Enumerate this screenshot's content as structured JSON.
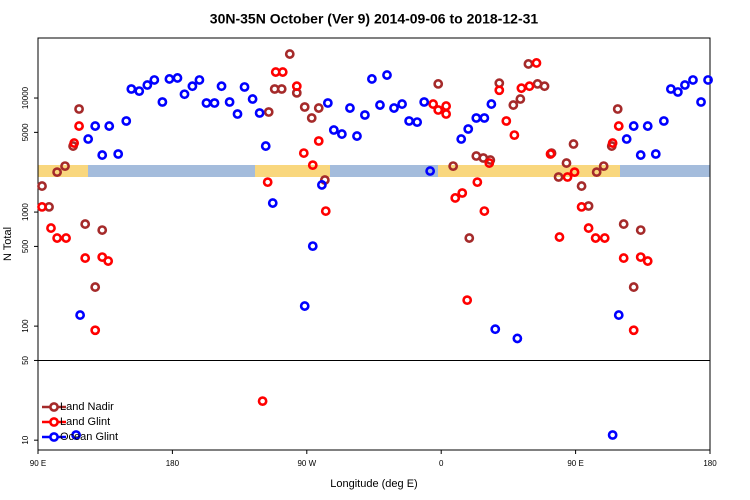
{
  "chart_data": {
    "type": "scatter",
    "title": "30N-35N October (Ver 9)   2014-09-06 to 2018-12-31",
    "xlabel": "Longitude (deg E)",
    "ylabel": "N Total",
    "xlim": [
      90,
      540
    ],
    "xticks": [
      {
        "value": 90,
        "label": "90 E"
      },
      180,
      {
        "value": 270,
        "label": "90 W"
      },
      {
        "value": 360,
        "label": "0"
      },
      {
        "value": 450,
        "label": "90 E"
      },
      {
        "value": 540,
        "label": "180"
      }
    ],
    "ylim": [
      8.2,
      33600
    ],
    "yscale": "log",
    "yticks": [
      10,
      50,
      100,
      500,
      1000,
      5000,
      10000
    ],
    "hline": 50,
    "legend": "bottom-left",
    "series": [
      {
        "name": "Land Nadir",
        "color": "#a52a2a",
        "x": [
          92.7,
          97.4,
          102.8,
          108.1,
          113.5,
          117.5,
          121.6,
          128.3,
          133.0,
          244.5,
          248.5,
          253.2,
          258.6,
          263.3,
          268.6,
          273.3,
          278.0,
          282.1,
          358.0,
          368.0,
          378.8,
          383.5,
          388.2,
          392.9,
          398.9,
          408.3,
          413.0,
          418.4,
          424.5,
          429.2,
          433.9,
          438.6,
          443.9,
          448.6,
          454.0,
          458.7,
          464.1,
          468.8,
          474.2,
          478.2,
          482.2,
          488.9,
          493.6
        ],
        "values": [
          1690,
          1110,
          2240,
          2530,
          3790,
          8010,
          785,
          220,
          695,
          7540,
          12000,
          12000,
          24300,
          11100,
          8340,
          6680,
          8170,
          1910,
          13300,
          2530,
          592,
          3100,
          2980,
          2860,
          13500,
          8680,
          9800,
          19900,
          13300,
          12700,
          3290,
          2030,
          2690,
          3950,
          1690,
          1130,
          2240,
          2530,
          3790,
          8010,
          785,
          220,
          695
        ]
      },
      {
        "name": "Land Glint",
        "color": "#ff0000",
        "x": [
          92.7,
          98.7,
          102.8,
          108.8,
          114.2,
          117.5,
          121.6,
          128.3,
          133.0,
          137.0,
          240.4,
          243.8,
          249.2,
          253.9,
          263.3,
          268.0,
          274.0,
          278.0,
          282.7,
          354.6,
          358.0,
          363.3,
          363.3,
          369.4,
          374.1,
          377.4,
          384.2,
          388.9,
          392.2,
          398.9,
          403.6,
          409.0,
          413.7,
          419.1,
          423.8,
          433.2,
          439.2,
          444.6,
          449.3,
          454.0,
          458.7,
          463.4,
          469.5,
          474.8,
          478.9,
          482.2,
          488.9,
          493.6,
          498.3
        ],
        "values": [
          1110,
          724,
          592,
          592,
          4030,
          5680,
          395,
          92,
          403,
          372,
          22,
          1830,
          16900,
          16900,
          12700,
          3290,
          2580,
          4200,
          1020,
          8850,
          7850,
          8500,
          7240,
          1330,
          1470,
          169,
          1830,
          1020,
          2690,
          11700,
          6290,
          4730,
          12200,
          12700,
          20300,
          3230,
          604,
          2030,
          2240,
          1110,
          724,
          592,
          592,
          4030,
          5680,
          395,
          92,
          403,
          372
        ]
      },
      {
        "name": "Ocean Glint",
        "color": "#0000ff",
        "x": [
          115.5,
          118.2,
          123.6,
          128.3,
          133.0,
          137.7,
          143.7,
          149.1,
          152.5,
          157.8,
          163.2,
          167.9,
          173.3,
          178.0,
          183.4,
          188.1,
          193.4,
          198.1,
          202.8,
          208.2,
          212.9,
          218.3,
          223.6,
          228.3,
          233.7,
          238.4,
          242.5,
          247.2,
          268.6,
          274.0,
          280.1,
          284.1,
          288.1,
          293.5,
          298.9,
          303.6,
          308.9,
          313.6,
          319.0,
          323.7,
          328.4,
          333.8,
          338.5,
          343.9,
          348.6,
          352.6,
          373.4,
          378.1,
          383.5,
          388.9,
          393.6,
          396.2,
          411.0,
          474.8,
          478.9,
          484.2,
          488.9,
          493.6,
          498.3,
          503.7,
          509.1,
          513.8,
          518.5,
          523.2,
          528.6,
          534.0,
          538.7
        ],
        "values": [
          11.1,
          125,
          4370,
          5680,
          3160,
          5680,
          3230,
          6290,
          12000,
          11500,
          13000,
          14400,
          9230,
          14700,
          15000,
          10800,
          12700,
          14400,
          9040,
          9040,
          12700,
          9230,
          7240,
          12500,
          9800,
          7390,
          3790,
          1200,
          150,
          503,
          1730,
          9040,
          5240,
          4830,
          8170,
          4640,
          7100,
          14700,
          8680,
          15900,
          8170,
          8850,
          6290,
          6150,
          9230,
          2290,
          4370,
          5350,
          6680,
          6680,
          8850,
          94,
          78,
          11.1,
          125,
          4370,
          5680,
          3160,
          5680,
          3230,
          6290,
          12000,
          11300,
          13000,
          14400,
          9230,
          14400
        ]
      }
    ]
  }
}
